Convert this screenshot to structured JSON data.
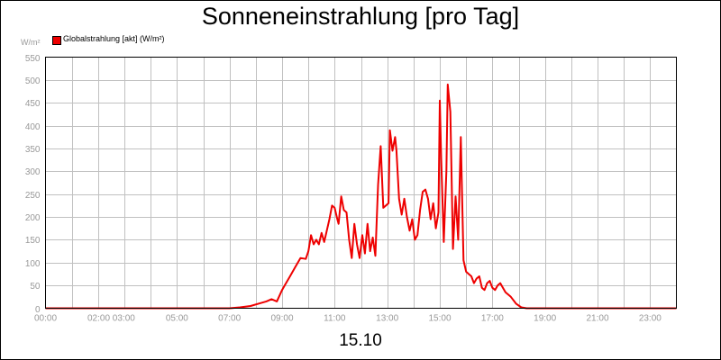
{
  "chart_data": {
    "type": "line",
    "title": "Sonneneinstrahlung [pro Tag]",
    "ylabel": "W/m²",
    "xlabel": "15.10",
    "xlim": [
      0,
      24
    ],
    "ylim": [
      0,
      550
    ],
    "yticks": [
      0,
      50,
      100,
      150,
      200,
      250,
      300,
      350,
      400,
      450,
      500,
      550
    ],
    "xtick_labels": [
      "00:00",
      "02:00 03:00",
      "05:00",
      "07:00",
      "09:00",
      "11:00",
      "13:00",
      "15:00",
      "17:00",
      "19:00",
      "21:00",
      "23:00"
    ],
    "xtick_hours": [
      0,
      2.5,
      5,
      7,
      9,
      11,
      13,
      15,
      17,
      19,
      21,
      23
    ],
    "grid": true,
    "legend_position": "top-left",
    "series": [
      {
        "name": "Globalstrahlung [akt] (W/m²)",
        "color": "#ee0000",
        "x": [
          0,
          7.0,
          7.4,
          7.8,
          8.1,
          8.4,
          8.6,
          8.8,
          9.0,
          9.1,
          9.3,
          9.5,
          9.7,
          9.9,
          10.0,
          10.1,
          10.2,
          10.3,
          10.4,
          10.5,
          10.6,
          10.7,
          10.8,
          10.9,
          11.0,
          11.1,
          11.15,
          11.25,
          11.35,
          11.45,
          11.55,
          11.65,
          11.75,
          11.85,
          11.95,
          12.05,
          12.15,
          12.25,
          12.35,
          12.45,
          12.55,
          12.65,
          12.75,
          12.85,
          12.95,
          13.05,
          13.1,
          13.2,
          13.3,
          13.35,
          13.45,
          13.55,
          13.65,
          13.75,
          13.85,
          13.95,
          14.05,
          14.15,
          14.25,
          14.35,
          14.45,
          14.55,
          14.65,
          14.75,
          14.85,
          14.95,
          15.0,
          15.05,
          15.15,
          15.25,
          15.3,
          15.4,
          15.5,
          15.6,
          15.7,
          15.8,
          15.9,
          16.0,
          16.1,
          16.2,
          16.3,
          16.4,
          16.5,
          16.6,
          16.7,
          16.8,
          16.9,
          17.0,
          17.1,
          17.2,
          17.3,
          17.4,
          17.5,
          17.7,
          17.9,
          18.1,
          18.3,
          18.6,
          18.9,
          19.2,
          24
        ],
        "y": [
          0,
          0,
          2,
          5,
          10,
          15,
          20,
          15,
          40,
          50,
          70,
          90,
          110,
          108,
          125,
          160,
          140,
          150,
          140,
          165,
          145,
          170,
          195,
          225,
          220,
          195,
          185,
          245,
          215,
          210,
          150,
          110,
          185,
          140,
          110,
          160,
          120,
          185,
          125,
          155,
          115,
          270,
          355,
          220,
          225,
          230,
          390,
          345,
          375,
          345,
          240,
          205,
          240,
          200,
          170,
          195,
          150,
          160,
          215,
          255,
          260,
          240,
          195,
          230,
          175,
          210,
          455,
          330,
          145,
          300,
          490,
          430,
          130,
          245,
          150,
          375,
          105,
          80,
          75,
          70,
          55,
          65,
          70,
          45,
          40,
          55,
          60,
          45,
          40,
          50,
          55,
          45,
          35,
          25,
          10,
          2,
          0,
          0,
          0,
          0,
          0
        ]
      }
    ]
  }
}
